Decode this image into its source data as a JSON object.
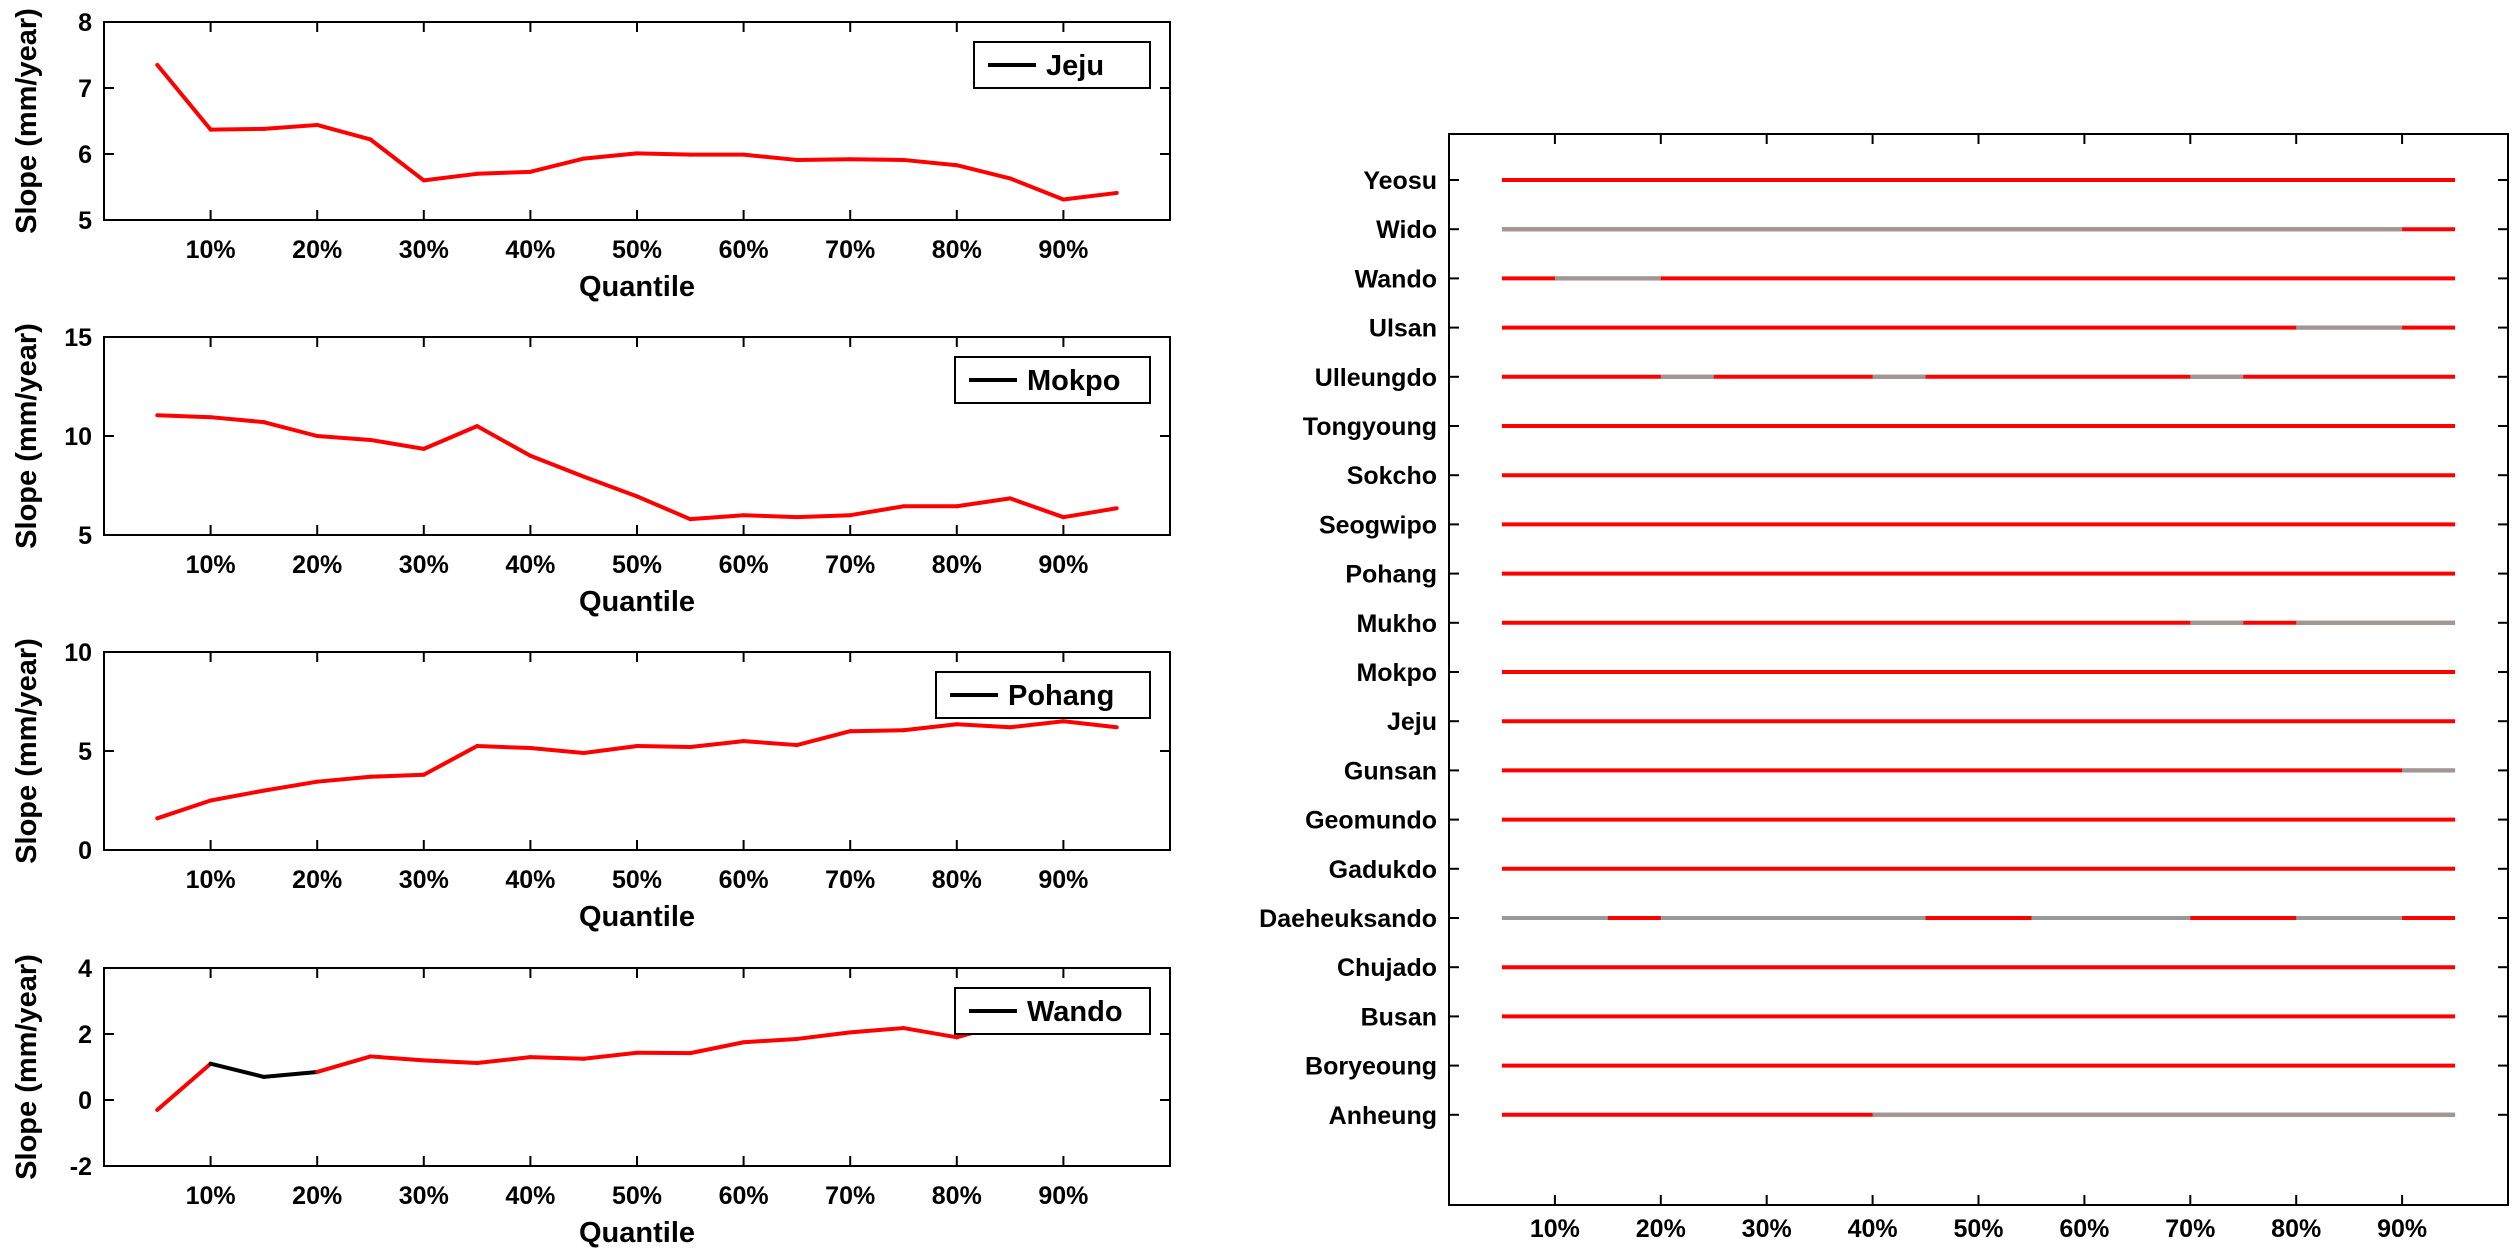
{
  "colors": {
    "significant": "#ff0000",
    "not_significant": "#999999",
    "highlight_segment": "#000000",
    "axes": "#000000"
  },
  "chart_data": [
    {
      "type": "line",
      "legend": "Jeju",
      "legend_placement": "top-right",
      "xlabel": "Quantile",
      "ylabel": "Slope (mm/year)",
      "x": [
        5,
        10,
        15,
        20,
        25,
        30,
        35,
        40,
        45,
        50,
        55,
        60,
        65,
        70,
        75,
        80,
        85,
        90,
        95
      ],
      "values": [
        7.35,
        6.37,
        6.38,
        6.44,
        6.22,
        5.6,
        5.7,
        5.73,
        5.93,
        6.01,
        5.99,
        5.99,
        5.91,
        5.92,
        5.91,
        5.83,
        5.63,
        5.31,
        5.41
      ],
      "black_segment_index_range": null,
      "ylim": [
        5,
        8
      ],
      "yticks": [
        5,
        6,
        7,
        8
      ],
      "xlim": [
        0,
        100
      ],
      "xticks": [
        10,
        20,
        30,
        40,
        50,
        60,
        70,
        80,
        90
      ],
      "xtick_labels": [
        "10%",
        "20%",
        "30%",
        "40%",
        "50%",
        "60%",
        "70%",
        "80%",
        "90%"
      ]
    },
    {
      "type": "line",
      "legend": "Mokpo",
      "legend_placement": "top-right",
      "xlabel": "Quantile",
      "ylabel": "Slope (mm/year)",
      "x": [
        5,
        10,
        15,
        20,
        25,
        30,
        35,
        40,
        45,
        50,
        55,
        60,
        65,
        70,
        75,
        80,
        85,
        90,
        95
      ],
      "values": [
        11.05,
        10.95,
        10.7,
        10.0,
        9.8,
        9.35,
        10.5,
        9.0,
        7.95,
        6.95,
        5.8,
        6.0,
        5.9,
        6.0,
        6.45,
        6.45,
        6.85,
        5.9,
        6.35
      ],
      "black_segment_index_range": null,
      "ylim": [
        5,
        15
      ],
      "yticks": [
        5,
        10,
        15
      ],
      "xlim": [
        0,
        100
      ],
      "xticks": [
        10,
        20,
        30,
        40,
        50,
        60,
        70,
        80,
        90
      ],
      "xtick_labels": [
        "10%",
        "20%",
        "30%",
        "40%",
        "50%",
        "60%",
        "70%",
        "80%",
        "90%"
      ]
    },
    {
      "type": "line",
      "legend": "Pohang",
      "legend_placement": "top-right",
      "xlabel": "Quantile",
      "ylabel": "Slope (mm/year)",
      "x": [
        5,
        10,
        15,
        20,
        25,
        30,
        35,
        40,
        45,
        50,
        55,
        60,
        65,
        70,
        75,
        80,
        85,
        90,
        95
      ],
      "values": [
        1.6,
        2.5,
        3.0,
        3.45,
        3.7,
        3.8,
        5.25,
        5.15,
        4.9,
        5.25,
        5.2,
        5.5,
        5.3,
        6.0,
        6.05,
        6.35,
        6.2,
        6.5,
        6.2
      ],
      "black_segment_index_range": null,
      "ylim": [
        0,
        10
      ],
      "yticks": [
        0,
        5,
        10
      ],
      "xlim": [
        0,
        100
      ],
      "xticks": [
        10,
        20,
        30,
        40,
        50,
        60,
        70,
        80,
        90
      ],
      "xtick_labels": [
        "10%",
        "20%",
        "30%",
        "40%",
        "50%",
        "60%",
        "70%",
        "80%",
        "90%"
      ]
    },
    {
      "type": "line",
      "legend": "Wando",
      "legend_placement": "top-right",
      "xlabel": "Quantile",
      "ylabel": "Slope (mm/year)",
      "x": [
        5,
        10,
        15,
        20,
        25,
        30,
        35,
        40,
        45,
        50,
        55,
        60,
        65,
        70,
        75,
        80,
        85,
        90,
        95
      ],
      "values": [
        -0.3,
        1.1,
        0.7,
        0.85,
        1.32,
        1.2,
        1.12,
        1.3,
        1.25,
        1.43,
        1.42,
        1.75,
        1.85,
        2.05,
        2.18,
        1.9,
        2.35,
        2.6,
        2.75
      ],
      "black_segment_index_range": [
        1,
        3
      ],
      "ylim": [
        -2,
        4
      ],
      "yticks": [
        -2,
        0,
        2,
        4
      ],
      "xlim": [
        0,
        100
      ],
      "xticks": [
        10,
        20,
        30,
        40,
        50,
        60,
        70,
        80,
        90
      ],
      "xtick_labels": [
        "10%",
        "20%",
        "30%",
        "40%",
        "50%",
        "60%",
        "70%",
        "80%",
        "90%"
      ]
    },
    {
      "type": "significance-bars",
      "xlabel": "Quantile",
      "xlim": [
        0,
        100
      ],
      "xticks": [
        10,
        20,
        30,
        40,
        50,
        60,
        70,
        80,
        90
      ],
      "xtick_labels": [
        "10%",
        "20%",
        "30%",
        "40%",
        "50%",
        "60%",
        "70%",
        "80%",
        "90%"
      ],
      "x_start": 5,
      "x_end": 95,
      "stations": [
        {
          "name": "Yeosu",
          "grey_ranges": []
        },
        {
          "name": "Wido",
          "grey_ranges": [
            [
              5,
              90
            ]
          ]
        },
        {
          "name": "Wando",
          "grey_ranges": [
            [
              10,
              20
            ]
          ]
        },
        {
          "name": "Ulsan",
          "grey_ranges": [
            [
              80,
              90
            ]
          ]
        },
        {
          "name": "Ulleungdo",
          "grey_ranges": [
            [
              20,
              25
            ],
            [
              40,
              45
            ],
            [
              70,
              75
            ]
          ]
        },
        {
          "name": "Tongyoung",
          "grey_ranges": []
        },
        {
          "name": "Sokcho",
          "grey_ranges": []
        },
        {
          "name": "Seogwipo",
          "grey_ranges": []
        },
        {
          "name": "Pohang",
          "grey_ranges": []
        },
        {
          "name": "Mukho",
          "grey_ranges": [
            [
              70,
              75
            ],
            [
              80,
              95
            ]
          ]
        },
        {
          "name": "Mokpo",
          "grey_ranges": []
        },
        {
          "name": "Jeju",
          "grey_ranges": []
        },
        {
          "name": "Gunsan",
          "grey_ranges": [
            [
              90,
              95
            ]
          ]
        },
        {
          "name": "Geomundo",
          "grey_ranges": []
        },
        {
          "name": "Gadukdo",
          "grey_ranges": []
        },
        {
          "name": "Daeheuksando",
          "grey_ranges": [
            [
              5,
              15
            ],
            [
              20,
              45
            ],
            [
              55,
              70
            ],
            [
              80,
              90
            ]
          ]
        },
        {
          "name": "Chujado",
          "grey_ranges": []
        },
        {
          "name": "Busan",
          "grey_ranges": []
        },
        {
          "name": "Boryeoung",
          "grey_ranges": []
        },
        {
          "name": "Anheung",
          "grey_ranges": [
            [
              40,
              95
            ]
          ]
        }
      ]
    }
  ]
}
